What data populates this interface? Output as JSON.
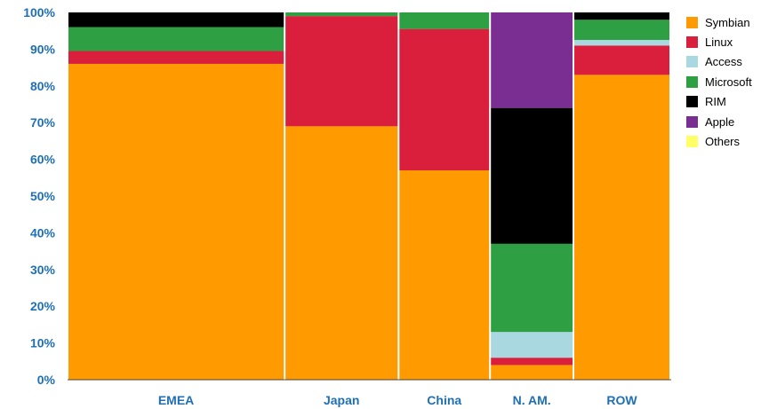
{
  "chart_data": {
    "type": "bar",
    "stacked": true,
    "variable_width": true,
    "categories": [
      "EMEA",
      "Japan",
      "China",
      "N. AM.",
      "ROW"
    ],
    "relative_widths": [
      242,
      127,
      102,
      93,
      108
    ],
    "y_ticks": [
      "0%",
      "10%",
      "20%",
      "30%",
      "40%",
      "50%",
      "60%",
      "70%",
      "80%",
      "90%",
      "100%"
    ],
    "ylim": [
      0,
      100
    ],
    "legend_position": "right",
    "series": [
      {
        "name": "Symbian",
        "color": "#ff9a00",
        "values": [
          86,
          69,
          57,
          4,
          83
        ]
      },
      {
        "name": "Linux",
        "color": "#d91f3c",
        "values": [
          3.5,
          30,
          38.5,
          2,
          8
        ]
      },
      {
        "name": "Access",
        "color": "#a9d8e0",
        "values": [
          0,
          0,
          0,
          7,
          1.5
        ]
      },
      {
        "name": "Microsoft",
        "color": "#2ea043",
        "values": [
          6.5,
          1,
          4.5,
          24,
          5.5
        ]
      },
      {
        "name": "RIM",
        "color": "#000000",
        "values": [
          4,
          0,
          0,
          37,
          2
        ]
      },
      {
        "name": "Apple",
        "color": "#7a2e91",
        "values": [
          0,
          0,
          0,
          26,
          0
        ]
      },
      {
        "name": "Others",
        "color": "#ffff66",
        "values": [
          0,
          0,
          0,
          0,
          0
        ]
      }
    ]
  }
}
